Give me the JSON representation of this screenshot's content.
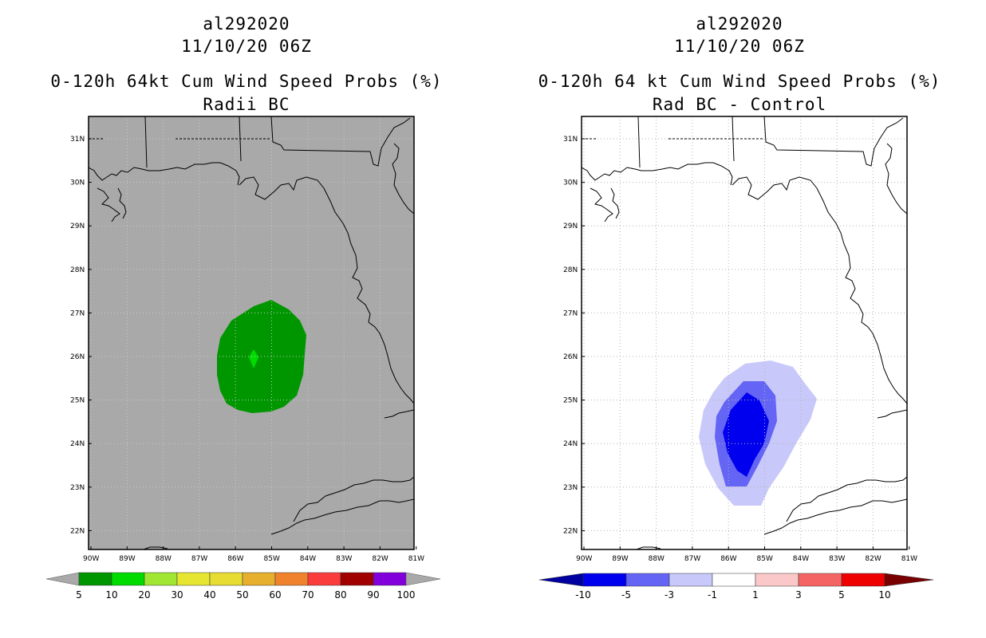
{
  "left_panel": {
    "title_lines": [
      "al292020",
      "11/10/20 06Z",
      "0-120h 64kt Cum Wind Speed Probs (%)",
      "Radii BC"
    ],
    "background_color": "#a9a9a9",
    "colorbar": {
      "colors": [
        "#009600",
        "#00dc00",
        "#a0e632",
        "#e6e632",
        "#e6dc32",
        "#e6af2d",
        "#f0822d",
        "#fa3c3c",
        "#a00000",
        "#8200dc"
      ],
      "labels": [
        "5",
        "10",
        "20",
        "30",
        "40",
        "50",
        "60",
        "70",
        "80",
        "90",
        "100"
      ],
      "arrow_color": "#a9a9a9"
    },
    "contours": [
      {
        "name": "prob-5-10",
        "color": "#009600"
      },
      {
        "name": "prob-10-20",
        "color": "#00dc00"
      }
    ]
  },
  "right_panel": {
    "title_lines": [
      "al292020",
      "11/10/20 06Z",
      "0-120h 64 kt Cum Wind Speed Probs (%)",
      "Rad BC - Control"
    ],
    "background_color": "#ffffff",
    "colorbar": {
      "colors": [
        "#0000ee",
        "#6464f5",
        "#c8c8fa",
        "#ffffff",
        "#fac8c8",
        "#f56464",
        "#ee0000"
      ],
      "labels": [
        "-10",
        "-5",
        "-3",
        "-1",
        "1",
        "3",
        "5",
        "10"
      ],
      "left_arrow_color": "#0000a0",
      "right_arrow_color": "#780000"
    },
    "contours": [
      {
        "name": "diff-minus1-minus3",
        "color": "#c8c8fa"
      },
      {
        "name": "diff-minus3-minus5",
        "color": "#6464f5"
      },
      {
        "name": "diff-minus5-minus10",
        "color": "#0000ee"
      }
    ]
  },
  "map": {
    "lat_labels": [
      "31N",
      "30N",
      "29N",
      "28N",
      "27N",
      "26N",
      "25N",
      "24N",
      "23N",
      "22N"
    ],
    "lon_labels": [
      "90W",
      "89W",
      "88W",
      "87W",
      "86W",
      "85W",
      "84W",
      "83W",
      "82W",
      "81W"
    ]
  }
}
